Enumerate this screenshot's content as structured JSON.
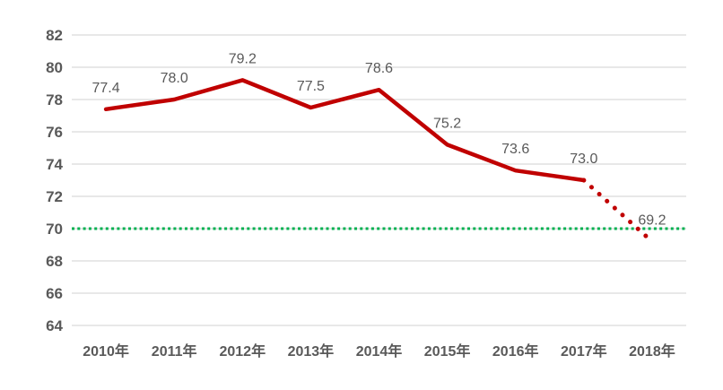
{
  "chart_data": {
    "type": "line",
    "categories": [
      "2010年",
      "2011年",
      "2012年",
      "2013年",
      "2014年",
      "2015年",
      "2016年",
      "2017年",
      "2018年"
    ],
    "series": [
      {
        "name": "value-series",
        "values": [
          77.4,
          78.0,
          79.2,
          77.5,
          78.6,
          75.2,
          73.6,
          73.0,
          69.2
        ],
        "labels": [
          "77.4",
          "78.0",
          "79.2",
          "77.5",
          "78.6",
          "75.2",
          "73.6",
          "73.0",
          "69.2"
        ],
        "solid_through_index": 7,
        "color": "#C00000"
      }
    ],
    "reference_line": {
      "value": 70,
      "color": "#00B050",
      "style": "dotted"
    },
    "title": "",
    "xlabel": "",
    "ylabel": "",
    "ylim": [
      64,
      82
    ],
    "ytick_step": 2,
    "yticks": [
      "64",
      "66",
      "68",
      "70",
      "72",
      "74",
      "76",
      "78",
      "80",
      "82"
    ],
    "grid": true,
    "legend": "none",
    "colors": {
      "gridline": "#D9D9D9",
      "axis_label": "#595959",
      "data_label": "#595959",
      "background": "#FFFFFF"
    }
  }
}
